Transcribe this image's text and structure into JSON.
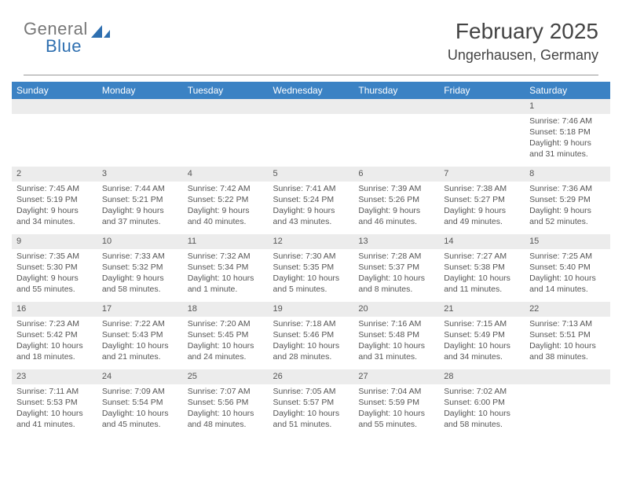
{
  "brand": {
    "part1": "General",
    "part2": "Blue",
    "color1": "#777777",
    "color2": "#2e6fb0",
    "shape_color": "#2e6fb0"
  },
  "header": {
    "title": "February 2025",
    "location": "Ungerhausen, Germany"
  },
  "style": {
    "header_bg": "#3b82c4",
    "header_fg": "#ffffff",
    "daynum_bg": "#ececec",
    "text_color": "#555555",
    "rule_color": "#999999",
    "title_fontsize": 28,
    "location_fontsize": 18,
    "dayheader_fontsize": 12,
    "cell_fontsize": 10.5
  },
  "weekdays": [
    "Sunday",
    "Monday",
    "Tuesday",
    "Wednesday",
    "Thursday",
    "Friday",
    "Saturday"
  ],
  "weeks": [
    [
      null,
      null,
      null,
      null,
      null,
      null,
      {
        "n": "1",
        "sr": "Sunrise: 7:46 AM",
        "ss": "Sunset: 5:18 PM",
        "d1": "Daylight: 9 hours",
        "d2": "and 31 minutes."
      }
    ],
    [
      {
        "n": "2",
        "sr": "Sunrise: 7:45 AM",
        "ss": "Sunset: 5:19 PM",
        "d1": "Daylight: 9 hours",
        "d2": "and 34 minutes."
      },
      {
        "n": "3",
        "sr": "Sunrise: 7:44 AM",
        "ss": "Sunset: 5:21 PM",
        "d1": "Daylight: 9 hours",
        "d2": "and 37 minutes."
      },
      {
        "n": "4",
        "sr": "Sunrise: 7:42 AM",
        "ss": "Sunset: 5:22 PM",
        "d1": "Daylight: 9 hours",
        "d2": "and 40 minutes."
      },
      {
        "n": "5",
        "sr": "Sunrise: 7:41 AM",
        "ss": "Sunset: 5:24 PM",
        "d1": "Daylight: 9 hours",
        "d2": "and 43 minutes."
      },
      {
        "n": "6",
        "sr": "Sunrise: 7:39 AM",
        "ss": "Sunset: 5:26 PM",
        "d1": "Daylight: 9 hours",
        "d2": "and 46 minutes."
      },
      {
        "n": "7",
        "sr": "Sunrise: 7:38 AM",
        "ss": "Sunset: 5:27 PM",
        "d1": "Daylight: 9 hours",
        "d2": "and 49 minutes."
      },
      {
        "n": "8",
        "sr": "Sunrise: 7:36 AM",
        "ss": "Sunset: 5:29 PM",
        "d1": "Daylight: 9 hours",
        "d2": "and 52 minutes."
      }
    ],
    [
      {
        "n": "9",
        "sr": "Sunrise: 7:35 AM",
        "ss": "Sunset: 5:30 PM",
        "d1": "Daylight: 9 hours",
        "d2": "and 55 minutes."
      },
      {
        "n": "10",
        "sr": "Sunrise: 7:33 AM",
        "ss": "Sunset: 5:32 PM",
        "d1": "Daylight: 9 hours",
        "d2": "and 58 minutes."
      },
      {
        "n": "11",
        "sr": "Sunrise: 7:32 AM",
        "ss": "Sunset: 5:34 PM",
        "d1": "Daylight: 10 hours",
        "d2": "and 1 minute."
      },
      {
        "n": "12",
        "sr": "Sunrise: 7:30 AM",
        "ss": "Sunset: 5:35 PM",
        "d1": "Daylight: 10 hours",
        "d2": "and 5 minutes."
      },
      {
        "n": "13",
        "sr": "Sunrise: 7:28 AM",
        "ss": "Sunset: 5:37 PM",
        "d1": "Daylight: 10 hours",
        "d2": "and 8 minutes."
      },
      {
        "n": "14",
        "sr": "Sunrise: 7:27 AM",
        "ss": "Sunset: 5:38 PM",
        "d1": "Daylight: 10 hours",
        "d2": "and 11 minutes."
      },
      {
        "n": "15",
        "sr": "Sunrise: 7:25 AM",
        "ss": "Sunset: 5:40 PM",
        "d1": "Daylight: 10 hours",
        "d2": "and 14 minutes."
      }
    ],
    [
      {
        "n": "16",
        "sr": "Sunrise: 7:23 AM",
        "ss": "Sunset: 5:42 PM",
        "d1": "Daylight: 10 hours",
        "d2": "and 18 minutes."
      },
      {
        "n": "17",
        "sr": "Sunrise: 7:22 AM",
        "ss": "Sunset: 5:43 PM",
        "d1": "Daylight: 10 hours",
        "d2": "and 21 minutes."
      },
      {
        "n": "18",
        "sr": "Sunrise: 7:20 AM",
        "ss": "Sunset: 5:45 PM",
        "d1": "Daylight: 10 hours",
        "d2": "and 24 minutes."
      },
      {
        "n": "19",
        "sr": "Sunrise: 7:18 AM",
        "ss": "Sunset: 5:46 PM",
        "d1": "Daylight: 10 hours",
        "d2": "and 28 minutes."
      },
      {
        "n": "20",
        "sr": "Sunrise: 7:16 AM",
        "ss": "Sunset: 5:48 PM",
        "d1": "Daylight: 10 hours",
        "d2": "and 31 minutes."
      },
      {
        "n": "21",
        "sr": "Sunrise: 7:15 AM",
        "ss": "Sunset: 5:49 PM",
        "d1": "Daylight: 10 hours",
        "d2": "and 34 minutes."
      },
      {
        "n": "22",
        "sr": "Sunrise: 7:13 AM",
        "ss": "Sunset: 5:51 PM",
        "d1": "Daylight: 10 hours",
        "d2": "and 38 minutes."
      }
    ],
    [
      {
        "n": "23",
        "sr": "Sunrise: 7:11 AM",
        "ss": "Sunset: 5:53 PM",
        "d1": "Daylight: 10 hours",
        "d2": "and 41 minutes."
      },
      {
        "n": "24",
        "sr": "Sunrise: 7:09 AM",
        "ss": "Sunset: 5:54 PM",
        "d1": "Daylight: 10 hours",
        "d2": "and 45 minutes."
      },
      {
        "n": "25",
        "sr": "Sunrise: 7:07 AM",
        "ss": "Sunset: 5:56 PM",
        "d1": "Daylight: 10 hours",
        "d2": "and 48 minutes."
      },
      {
        "n": "26",
        "sr": "Sunrise: 7:05 AM",
        "ss": "Sunset: 5:57 PM",
        "d1": "Daylight: 10 hours",
        "d2": "and 51 minutes."
      },
      {
        "n": "27",
        "sr": "Sunrise: 7:04 AM",
        "ss": "Sunset: 5:59 PM",
        "d1": "Daylight: 10 hours",
        "d2": "and 55 minutes."
      },
      {
        "n": "28",
        "sr": "Sunrise: 7:02 AM",
        "ss": "Sunset: 6:00 PM",
        "d1": "Daylight: 10 hours",
        "d2": "and 58 minutes."
      },
      null
    ]
  ]
}
